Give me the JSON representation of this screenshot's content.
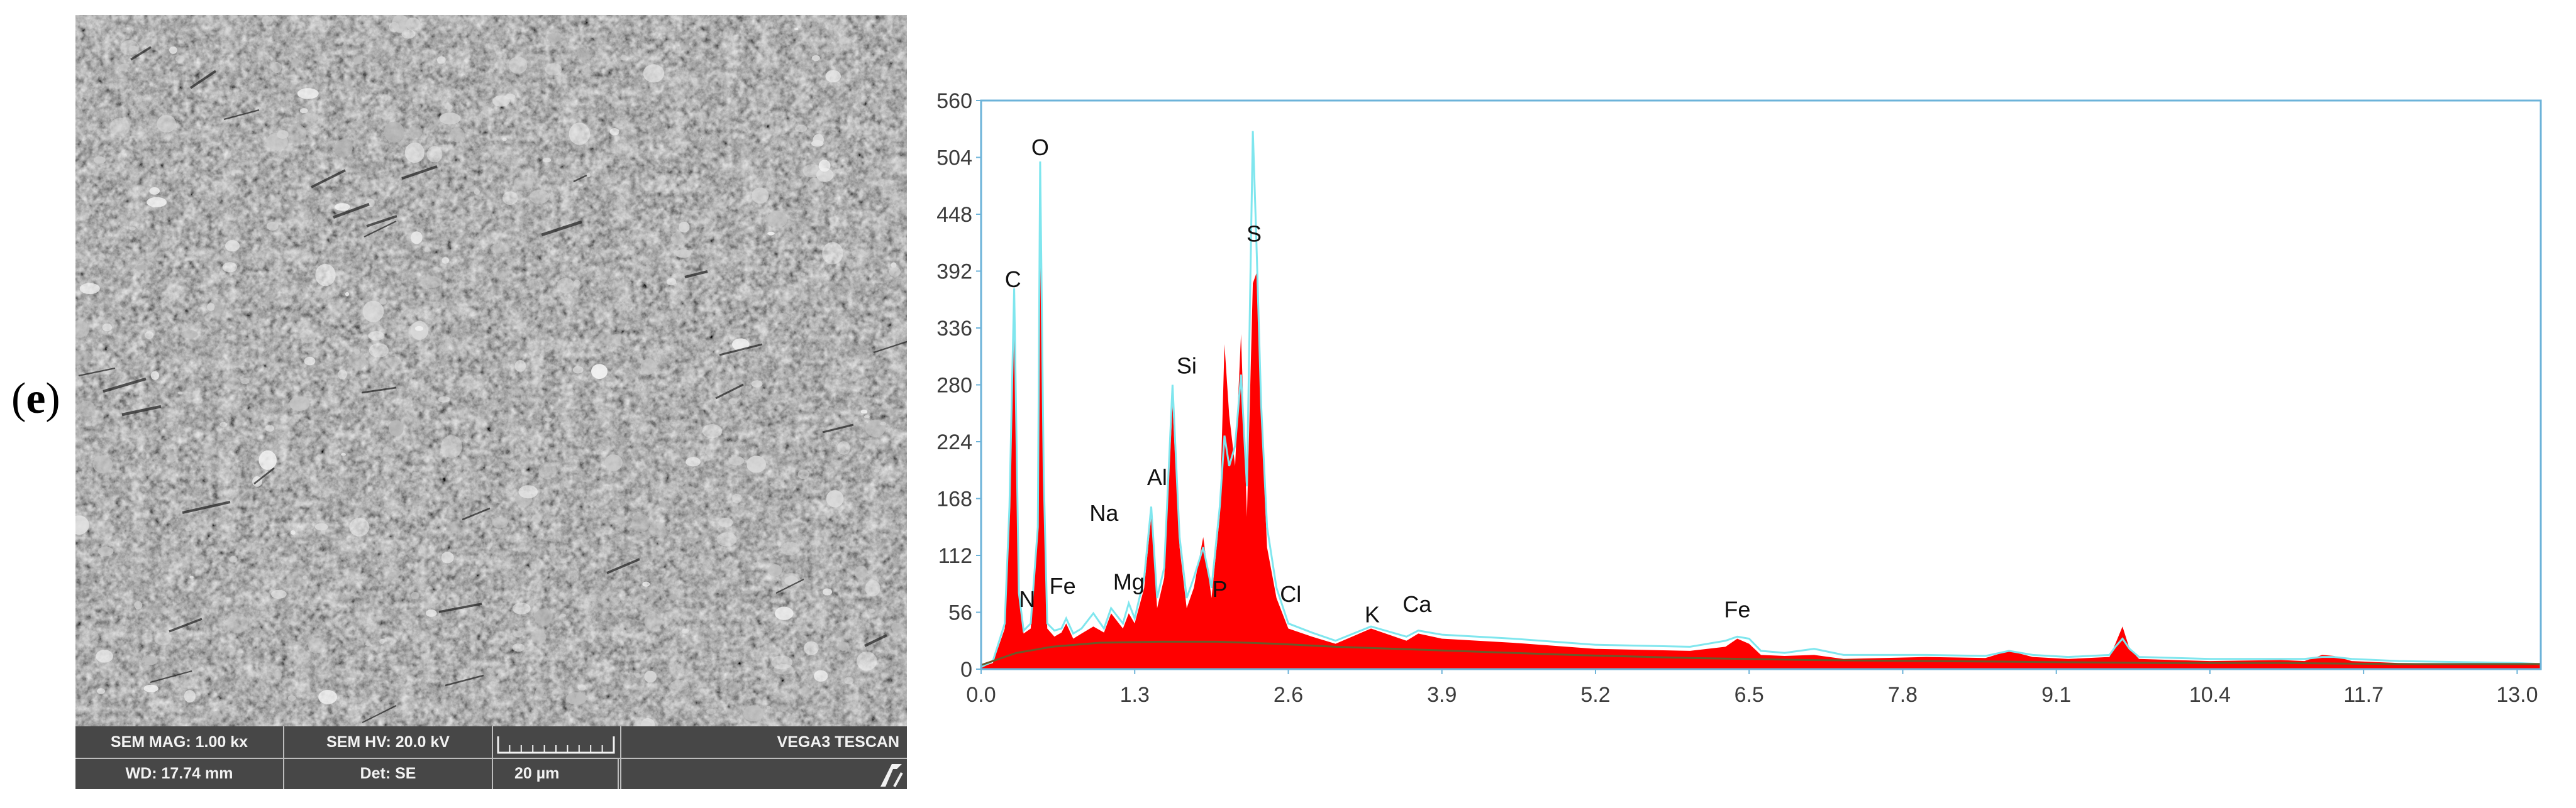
{
  "panel_label": {
    "open": "(",
    "letter": "e",
    "close": ")"
  },
  "sem": {
    "mag": "SEM MAG: 1.00 kx",
    "hv": "SEM HV: 20.0 kV",
    "wd": "WD: 17.74 mm",
    "det": "Det: SE",
    "scale_label": "20 µm",
    "instrument": "VEGA3 TESCAN",
    "colors": {
      "bar": "#474747",
      "text": "#f2f2f2"
    }
  },
  "chart_data": {
    "type": "area",
    "title": "",
    "xlabel": "",
    "ylabel": "",
    "xlim": [
      0.0,
      13.2
    ],
    "ylim": [
      0,
      560
    ],
    "xticks": [
      0.0,
      1.3,
      2.6,
      3.9,
      5.2,
      6.5,
      7.8,
      9.1,
      10.4,
      11.7,
      13.0
    ],
    "xtick_labels": [
      "0.0",
      "1.3",
      "2.6",
      "3.9",
      "5.2",
      "6.5",
      "7.8",
      "9.1",
      "10.4",
      "11.7",
      "13.0"
    ],
    "yticks": [
      0,
      56,
      112,
      168,
      224,
      280,
      336,
      392,
      448,
      504,
      560
    ],
    "ytick_labels": [
      "0",
      "56",
      "112",
      "168",
      "224",
      "280",
      "336",
      "392",
      "448",
      "504",
      "560"
    ],
    "grid": false,
    "legend": "none",
    "colors": {
      "spectrum_fill": "#ff0000",
      "reference_line": "#7fe6ee",
      "background_line": "#6b5a2a",
      "frame": "#6cb3d9"
    },
    "series": [
      {
        "style": "red filled spectrum",
        "x": [
          0.0,
          0.1,
          0.2,
          0.24,
          0.28,
          0.32,
          0.36,
          0.42,
          0.48,
          0.5,
          0.53,
          0.56,
          0.62,
          0.68,
          0.72,
          0.78,
          0.85,
          0.95,
          1.04,
          1.1,
          1.2,
          1.25,
          1.3,
          1.38,
          1.44,
          1.49,
          1.55,
          1.62,
          1.68,
          1.74,
          1.8,
          1.88,
          1.95,
          2.02,
          2.06,
          2.1,
          2.15,
          2.2,
          2.25,
          2.3,
          2.33,
          2.37,
          2.42,
          2.5,
          2.6,
          2.8,
          3.0,
          3.3,
          3.6,
          3.7,
          3.9,
          4.5,
          5.2,
          6.0,
          6.3,
          6.4,
          6.5,
          6.6,
          6.8,
          7.05,
          7.3,
          8.0,
          8.5,
          8.7,
          8.9,
          9.2,
          9.55,
          9.6,
          9.66,
          9.72,
          9.8,
          10.4,
          11.0,
          11.2,
          11.35,
          11.45,
          11.6,
          12.0,
          13.0,
          13.2
        ],
        "values": [
          2,
          6,
          40,
          150,
          362,
          70,
          35,
          40,
          130,
          490,
          180,
          40,
          32,
          36,
          45,
          30,
          35,
          42,
          36,
          55,
          40,
          55,
          45,
          80,
          150,
          60,
          90,
          260,
          120,
          60,
          80,
          130,
          70,
          150,
          320,
          250,
          200,
          330,
          150,
          380,
          390,
          250,
          120,
          70,
          40,
          32,
          25,
          40,
          28,
          35,
          30,
          26,
          20,
          18,
          22,
          30,
          25,
          14,
          13,
          14,
          10,
          12,
          11,
          18,
          12,
          10,
          12,
          25,
          42,
          20,
          10,
          8,
          9,
          8,
          14,
          13,
          8,
          6,
          5,
          4
        ]
      },
      {
        "style": "light cyan reference line",
        "x": [
          0.0,
          0.1,
          0.2,
          0.24,
          0.28,
          0.32,
          0.36,
          0.42,
          0.48,
          0.5,
          0.53,
          0.56,
          0.62,
          0.68,
          0.72,
          0.78,
          0.85,
          0.95,
          1.04,
          1.1,
          1.2,
          1.25,
          1.3,
          1.38,
          1.44,
          1.49,
          1.55,
          1.62,
          1.68,
          1.74,
          1.8,
          1.88,
          1.95,
          2.02,
          2.06,
          2.1,
          2.15,
          2.2,
          2.25,
          2.3,
          2.33,
          2.37,
          2.42,
          2.5,
          2.6,
          2.8,
          3.0,
          3.3,
          3.6,
          3.7,
          3.9,
          4.5,
          5.2,
          6.0,
          6.3,
          6.4,
          6.5,
          6.6,
          6.8,
          7.05,
          7.3,
          8.0,
          8.5,
          8.7,
          8.9,
          9.2,
          9.55,
          9.6,
          9.66,
          9.72,
          9.8,
          10.4,
          11.0,
          11.2,
          11.35,
          11.45,
          11.6,
          12.0,
          13.0,
          13.2
        ],
        "values": [
          2,
          8,
          45,
          160,
          375,
          75,
          38,
          45,
          140,
          500,
          190,
          45,
          38,
          40,
          50,
          35,
          40,
          55,
          40,
          60,
          45,
          65,
          50,
          90,
          160,
          70,
          100,
          280,
          130,
          70,
          90,
          120,
          80,
          160,
          230,
          200,
          220,
          290,
          180,
          530,
          420,
          260,
          140,
          80,
          45,
          36,
          28,
          42,
          32,
          38,
          34,
          30,
          24,
          22,
          28,
          32,
          30,
          18,
          16,
          20,
          14,
          14,
          13,
          18,
          14,
          12,
          14,
          22,
          30,
          20,
          12,
          10,
          10,
          10,
          12,
          12,
          10,
          8,
          6,
          5
        ]
      },
      {
        "style": "dark background line",
        "x": [
          0.0,
          0.3,
          0.6,
          1.0,
          1.5,
          2.0,
          2.5,
          3.0,
          4.0,
          5.0,
          6.0,
          7.0,
          8.0,
          9.0,
          10.0,
          11.0,
          12.0,
          13.0,
          13.2
        ],
        "values": [
          4,
          16,
          22,
          26,
          27,
          27,
          25,
          22,
          18,
          14,
          11,
          9,
          8,
          7,
          6,
          6,
          5,
          5,
          5
        ]
      }
    ],
    "annotations": [
      {
        "text": "C",
        "x": 0.27,
        "y": 370
      },
      {
        "text": "O",
        "x": 0.5,
        "y": 500
      },
      {
        "text": "N",
        "x": 0.39,
        "y": 55
      },
      {
        "text": "Fe",
        "x": 0.69,
        "y": 68
      },
      {
        "text": "Na",
        "x": 1.04,
        "y": 140
      },
      {
        "text": "Mg",
        "x": 1.25,
        "y": 72
      },
      {
        "text": "Al",
        "x": 1.49,
        "y": 175
      },
      {
        "text": "Si",
        "x": 1.74,
        "y": 285
      },
      {
        "text": "P",
        "x": 2.02,
        "y": 65
      },
      {
        "text": "S",
        "x": 2.31,
        "y": 415
      },
      {
        "text": "Cl",
        "x": 2.62,
        "y": 60
      },
      {
        "text": "K",
        "x": 3.31,
        "y": 40
      },
      {
        "text": "Ca",
        "x": 3.69,
        "y": 50
      },
      {
        "text": "Fe",
        "x": 6.4,
        "y": 45
      }
    ]
  }
}
